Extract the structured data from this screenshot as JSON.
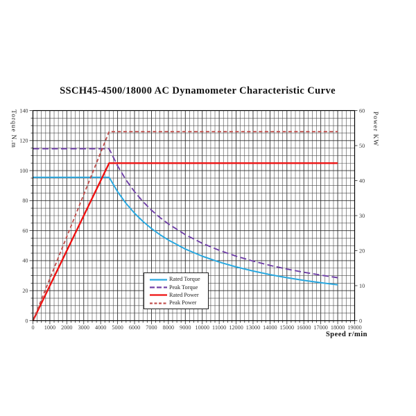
{
  "title": "SSCH45-4500/18000 AC Dynamometer Characteristic Curve",
  "axes": {
    "x": {
      "label": "Speed r/min",
      "min": 0,
      "max": 19000,
      "major_step": 1000,
      "minor_step": 250,
      "tick_labels": [
        "0",
        "1000",
        "2000",
        "3000",
        "4000",
        "5000",
        "6000",
        "7000",
        "8000",
        "9000",
        "10000",
        "11000",
        "12000",
        "13000",
        "14000",
        "15000",
        "16000",
        "17000",
        "18000",
        "19000"
      ]
    },
    "y_left": {
      "label": "Torque N.m",
      "min": 0,
      "max": 140,
      "major_step": 20,
      "minor_step": 5,
      "tick_labels": [
        "0",
        "20",
        "40",
        "60",
        "80",
        "100",
        "120",
        "140"
      ]
    },
    "y_right": {
      "label": "Power KW",
      "min": 0,
      "max": 60,
      "major_step": 10,
      "tick_labels": [
        "0",
        "10",
        "20",
        "30",
        "40",
        "50",
        "60"
      ]
    }
  },
  "legend": {
    "items": [
      {
        "label": "Rated Torque",
        "color": "#29a8e0",
        "dash": ""
      },
      {
        "label": "Peak Torque",
        "color": "#7040a8",
        "dash": "7 3"
      },
      {
        "label": "Rated Power",
        "color": "#ee1111",
        "dash": ""
      },
      {
        "label": "Peak Power",
        "color": "#c0504d",
        "dash": "4 2.5"
      }
    ]
  },
  "chart_data": {
    "type": "line",
    "title": "SSCH45-4500/18000 AC Dynamometer Characteristic Curve",
    "xlabel": "Speed r/min",
    "ylabel_left": "Torque N.m",
    "ylabel_right": "Power KW",
    "x_range": [
      0,
      19000
    ],
    "y_left_range": [
      0,
      140
    ],
    "y_right_range": [
      0,
      60
    ],
    "grid": true,
    "legend_position": "inside-bottom-center",
    "series": [
      {
        "name": "Rated Torque",
        "axis": "left",
        "color": "#29a8e0",
        "style": "solid",
        "width": 2,
        "points": [
          [
            0,
            95.5
          ],
          [
            4500,
            95.5
          ],
          [
            5000,
            85.95
          ],
          [
            5500,
            78.14
          ],
          [
            6000,
            71.63
          ],
          [
            6500,
            66.12
          ],
          [
            7000,
            61.39
          ],
          [
            7500,
            57.3
          ],
          [
            8000,
            53.72
          ],
          [
            9000,
            47.75
          ],
          [
            10000,
            42.98
          ],
          [
            11000,
            39.07
          ],
          [
            12000,
            35.81
          ],
          [
            13000,
            33.06
          ],
          [
            14000,
            30.7
          ],
          [
            15000,
            28.65
          ],
          [
            16000,
            26.86
          ],
          [
            17000,
            25.28
          ],
          [
            18000,
            23.88
          ]
        ]
      },
      {
        "name": "Peak Torque",
        "axis": "left",
        "color": "#7040a8",
        "style": "dashed",
        "width": 1.9,
        "dasharray": "9 4.5",
        "points": [
          [
            0,
            114.6
          ],
          [
            4500,
            114.6
          ],
          [
            5000,
            103.14
          ],
          [
            5500,
            93.76
          ],
          [
            6000,
            85.95
          ],
          [
            6500,
            79.34
          ],
          [
            7000,
            73.67
          ],
          [
            7500,
            68.76
          ],
          [
            8000,
            64.46
          ],
          [
            9000,
            57.3
          ],
          [
            10000,
            51.57
          ],
          [
            11000,
            46.88
          ],
          [
            12000,
            42.98
          ],
          [
            13000,
            39.67
          ],
          [
            14000,
            36.84
          ],
          [
            15000,
            34.38
          ],
          [
            16000,
            32.23
          ],
          [
            17000,
            30.34
          ],
          [
            18000,
            28.65
          ]
        ]
      },
      {
        "name": "Rated Power",
        "axis": "right",
        "color": "#ee1111",
        "style": "solid",
        "width": 2.4,
        "points": [
          [
            0,
            0
          ],
          [
            4500,
            45
          ],
          [
            18000,
            45
          ]
        ]
      },
      {
        "name": "Peak Power",
        "axis": "right",
        "color": "#c0504d",
        "style": "dashed",
        "width": 1.9,
        "dasharray": "5 3.5",
        "points": [
          [
            0,
            0
          ],
          [
            4500,
            54
          ],
          [
            18000,
            54
          ]
        ]
      }
    ]
  }
}
